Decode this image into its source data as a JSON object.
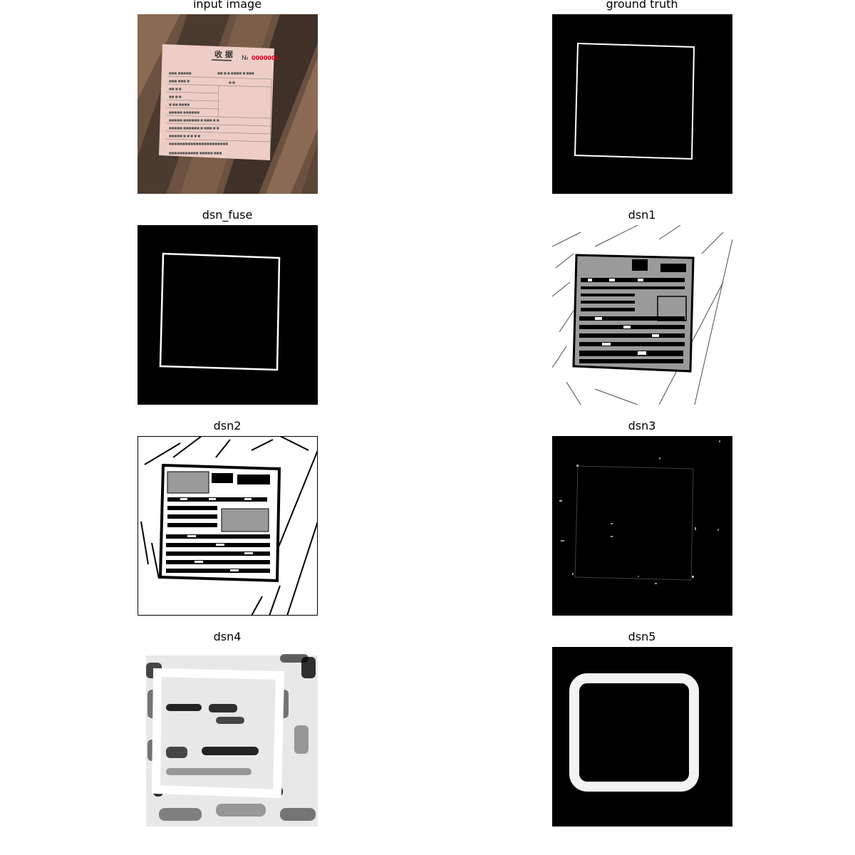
{
  "panels": [
    {
      "key": "input",
      "title": "input image"
    },
    {
      "key": "gt",
      "title": "ground truth"
    },
    {
      "key": "fuse",
      "title": "dsn_fuse"
    },
    {
      "key": "dsn1",
      "title": "dsn1"
    },
    {
      "key": "dsn2",
      "title": "dsn2"
    },
    {
      "key": "dsn3",
      "title": "dsn3"
    },
    {
      "key": "dsn4",
      "title": "dsn4"
    },
    {
      "key": "dsn5",
      "title": "dsn5"
    }
  ],
  "receipt": {
    "heading": "收 据",
    "number_prefix": "№",
    "number": "0000001"
  },
  "colors": {
    "receipt_bg": "#eecdc6",
    "receipt_number": "#d0021b",
    "edge": "#ffffff",
    "background": "#000000",
    "gray_fill": "#9a9a9a"
  }
}
